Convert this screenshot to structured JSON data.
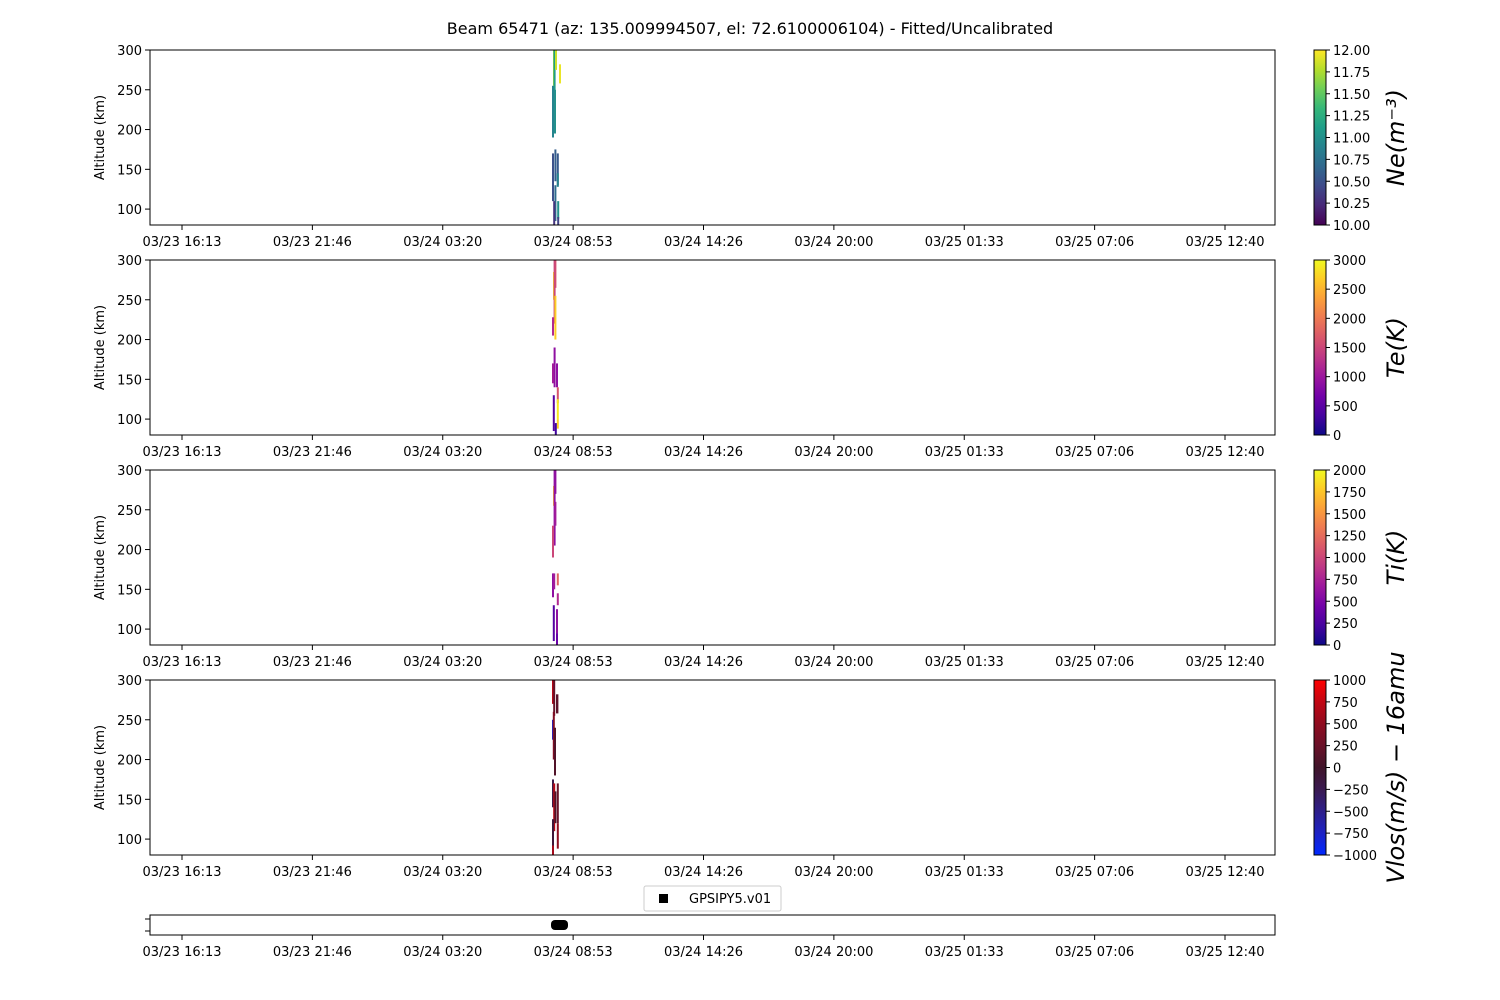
{
  "title": "Beam 65471 (az: 135.009994507, el: 72.6100006104) - Fitted/Uncalibrated",
  "x_tick_labels": [
    "03/23 16:13",
    "03/23 21:46",
    "03/24 03:20",
    "03/24 08:53",
    "03/24 14:26",
    "03/24 20:00",
    "03/25 01:33",
    "03/25 07:06",
    "03/25 12:40"
  ],
  "legend_label": "GPSIPY5.v01",
  "chart_data": [
    {
      "type": "heatmap",
      "ylabel": "Altitude (km)",
      "ylim": [
        80,
        300
      ],
      "y_ticks": [
        100,
        150,
        200,
        250,
        300
      ],
      "colorbar": {
        "label": "Ne(m⁻³)",
        "cmap": "viridis",
        "range": [
          10.0,
          12.0
        ],
        "ticks": [
          "10.00",
          "10.25",
          "10.50",
          "10.75",
          "11.00",
          "11.25",
          "11.50",
          "11.75",
          "12.00"
        ]
      },
      "cells": [
        {
          "t": 0.05,
          "w": 0.03,
          "y0": 255,
          "y1": 300,
          "v": 0.85
        },
        {
          "t": 0.08,
          "w": 0.03,
          "y0": 220,
          "y1": 300,
          "v": 0.55
        },
        {
          "t": 0.15,
          "w": 0.03,
          "y0": 275,
          "y1": 300,
          "v": 0.92
        },
        {
          "t": 0.0,
          "w": 0.04,
          "y0": 190,
          "y1": 255,
          "v": 0.45
        },
        {
          "t": 0.1,
          "w": 0.03,
          "y0": 195,
          "y1": 250,
          "v": 0.5
        },
        {
          "t": 0.35,
          "w": 0.06,
          "y0": 258,
          "y1": 282,
          "v": 0.97
        },
        {
          "t": 0.12,
          "w": 0.03,
          "y0": 135,
          "y1": 175,
          "v": 0.3
        },
        {
          "t": 0.0,
          "w": 0.08,
          "y0": 110,
          "y1": 170,
          "v": 0.25
        },
        {
          "t": 0.12,
          "w": 0.06,
          "y0": 85,
          "y1": 130,
          "v": 0.35
        },
        {
          "t": 0.24,
          "w": 0.08,
          "y0": 130,
          "y1": 170,
          "v": 0.28
        },
        {
          "t": 0.24,
          "w": 0.08,
          "y0": 128,
          "y1": 145,
          "v": 0.45
        },
        {
          "t": 0.06,
          "w": 0.1,
          "y0": 80,
          "y1": 110,
          "v": 0.15
        },
        {
          "t": 0.26,
          "w": 0.08,
          "y0": 88,
          "y1": 110,
          "v": 0.5
        },
        {
          "t": 0.26,
          "w": 0.06,
          "y0": 80,
          "y1": 90,
          "v": 0.2
        }
      ]
    },
    {
      "type": "heatmap",
      "ylabel": "Altitude (km)",
      "ylim": [
        80,
        300
      ],
      "y_ticks": [
        100,
        150,
        200,
        250,
        300
      ],
      "colorbar": {
        "label": "Te(K)",
        "cmap": "plasma",
        "range": [
          0,
          3000
        ],
        "ticks": [
          "0",
          "500",
          "1000",
          "1500",
          "2000",
          "2500",
          "3000"
        ]
      },
      "cells": [
        {
          "t": 0.12,
          "w": 0.03,
          "y0": 265,
          "y1": 300,
          "v": 0.55
        },
        {
          "t": 0.05,
          "w": 0.03,
          "y0": 250,
          "y1": 285,
          "v": 0.95
        },
        {
          "t": 0.08,
          "w": 0.03,
          "y0": 220,
          "y1": 300,
          "v": 0.5
        },
        {
          "t": 0.0,
          "w": 0.03,
          "y0": 205,
          "y1": 228,
          "v": 0.4
        },
        {
          "t": 0.12,
          "w": 0.03,
          "y0": 200,
          "y1": 255,
          "v": 0.9
        },
        {
          "t": 0.08,
          "w": 0.03,
          "y0": 140,
          "y1": 190,
          "v": 0.3
        },
        {
          "t": 0.0,
          "w": 0.06,
          "y0": 145,
          "y1": 170,
          "v": 0.35
        },
        {
          "t": 0.2,
          "w": 0.06,
          "y0": 140,
          "y1": 170,
          "v": 0.3
        },
        {
          "t": 0.24,
          "w": 0.08,
          "y0": 120,
          "y1": 140,
          "v": 0.55
        },
        {
          "t": 0.04,
          "w": 0.08,
          "y0": 85,
          "y1": 130,
          "v": 0.15
        },
        {
          "t": 0.24,
          "w": 0.08,
          "y0": 100,
          "y1": 125,
          "v": 0.95
        },
        {
          "t": 0.24,
          "w": 0.06,
          "y0": 88,
          "y1": 100,
          "v": 0.9
        },
        {
          "t": 0.14,
          "w": 0.08,
          "y0": 80,
          "y1": 95,
          "v": 0.1
        }
      ]
    },
    {
      "type": "heatmap",
      "ylabel": "Altitude (km)",
      "ylim": [
        80,
        300
      ],
      "y_ticks": [
        100,
        150,
        200,
        250,
        300
      ],
      "colorbar": {
        "label": "Ti(K)",
        "cmap": "plasma",
        "range": [
          0,
          2000
        ],
        "ticks": [
          "0",
          "250",
          "500",
          "750",
          "1000",
          "1250",
          "1500",
          "1750",
          "2000"
        ]
      },
      "cells": [
        {
          "t": 0.12,
          "w": 0.03,
          "y0": 270,
          "y1": 300,
          "v": 0.3
        },
        {
          "t": 0.05,
          "w": 0.03,
          "y0": 255,
          "y1": 280,
          "v": 0.9
        },
        {
          "t": 0.08,
          "w": 0.03,
          "y0": 205,
          "y1": 300,
          "v": 0.3
        },
        {
          "t": 0.0,
          "w": 0.03,
          "y0": 190,
          "y1": 230,
          "v": 0.5
        },
        {
          "t": 0.12,
          "w": 0.03,
          "y0": 230,
          "y1": 260,
          "v": 0.35
        },
        {
          "t": 0.0,
          "w": 0.03,
          "y0": 140,
          "y1": 170,
          "v": 0.3
        },
        {
          "t": 0.06,
          "w": 0.04,
          "y0": 150,
          "y1": 170,
          "v": 0.35
        },
        {
          "t": 0.24,
          "w": 0.08,
          "y0": 155,
          "y1": 170,
          "v": 0.6
        },
        {
          "t": 0.24,
          "w": 0.08,
          "y0": 130,
          "y1": 145,
          "v": 0.4
        },
        {
          "t": 0.04,
          "w": 0.1,
          "y0": 85,
          "y1": 130,
          "v": 0.15
        },
        {
          "t": 0.2,
          "w": 0.1,
          "y0": 95,
          "y1": 125,
          "v": 0.3
        },
        {
          "t": 0.2,
          "w": 0.1,
          "y0": 80,
          "y1": 95,
          "v": 0.2
        }
      ]
    },
    {
      "type": "heatmap",
      "ylabel": "Altitude (km)",
      "ylim": [
        80,
        300
      ],
      "y_ticks": [
        100,
        150,
        200,
        250,
        300
      ],
      "colorbar": {
        "label": "Vlos(m/s) − 16amu",
        "cmap": "bwr-dark",
        "range": [
          -1000,
          1000
        ],
        "ticks": [
          "−1000",
          "−750",
          "−500",
          "−250",
          "0",
          "250",
          "500",
          "750",
          "1000"
        ]
      },
      "cells": [
        {
          "t": 0.0,
          "w": 0.06,
          "y0": 270,
          "y1": 300,
          "v": 0.85
        },
        {
          "t": 0.06,
          "w": 0.06,
          "y0": 255,
          "y1": 300,
          "v": 0.6
        },
        {
          "t": 0.2,
          "w": 0.12,
          "y0": 258,
          "y1": 282,
          "v": 0.58
        },
        {
          "t": 0.0,
          "w": 0.04,
          "y0": 225,
          "y1": 250,
          "v": 0.1
        },
        {
          "t": 0.04,
          "w": 0.04,
          "y0": 200,
          "y1": 260,
          "v": 0.7
        },
        {
          "t": 0.1,
          "w": 0.03,
          "y0": 180,
          "y1": 240,
          "v": 0.55
        },
        {
          "t": 0.0,
          "w": 0.04,
          "y0": 140,
          "y1": 175,
          "v": 0.4
        },
        {
          "t": 0.06,
          "w": 0.06,
          "y0": 110,
          "y1": 170,
          "v": 0.85
        },
        {
          "t": 0.12,
          "w": 0.06,
          "y0": 120,
          "y1": 160,
          "v": 0.55
        },
        {
          "t": 0.24,
          "w": 0.08,
          "y0": 120,
          "y1": 170,
          "v": 0.62
        },
        {
          "t": 0.0,
          "w": 0.06,
          "y0": 90,
          "y1": 125,
          "v": 0.45
        },
        {
          "t": 0.24,
          "w": 0.08,
          "y0": 88,
          "y1": 120,
          "v": 0.75
        },
        {
          "t": 0.0,
          "w": 0.1,
          "y0": 80,
          "y1": 92,
          "v": 0.8
        }
      ]
    }
  ]
}
